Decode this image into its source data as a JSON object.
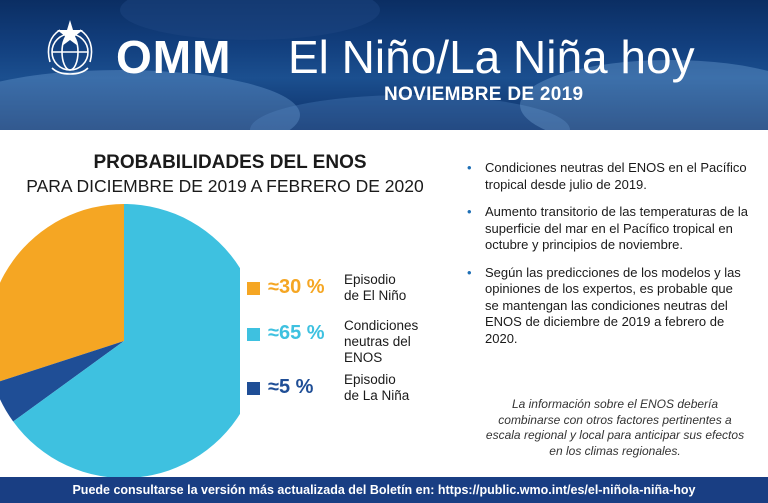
{
  "header": {
    "org": "OMM",
    "title": "El Niño/La Niña hoy",
    "subtitle": "NOVIEMBRE DE 2019"
  },
  "colors": {
    "el_nino": "#f5a623",
    "neutral": "#3ec1e0",
    "la_nina": "#1f4e96",
    "banner": "#123f7e",
    "footer": "#193e83"
  },
  "chart_data": {
    "type": "pie",
    "title": "PROBABILIDADES DEL ENOS",
    "subtitle": "PARA DICIEMBRE DE 2019 A FEBRERO DE 2020",
    "slices": [
      {
        "label": "Episodio de El Niño",
        "value": 30,
        "display": "≈30 %",
        "color": "#f5a623"
      },
      {
        "label": "Condiciones neutras del ENOS",
        "value": 65,
        "display": "≈65 %",
        "color": "#3ec1e0"
      },
      {
        "label": "Episodio de La Niña",
        "value": 5,
        "display": "≈5 %",
        "color": "#1f4e96"
      }
    ],
    "legend_lines": [
      [
        "Episodio",
        "de El Niño"
      ],
      [
        "Condiciones",
        "neutras del",
        "ENOS"
      ],
      [
        "Episodio",
        "de La Niña"
      ]
    ]
  },
  "bullets": [
    "Condiciones neutras del ENOS en el Pacífico tropical desde julio de 2019.",
    "Aumento transitorio de las temperaturas de la superficie del mar en el Pacífico tropical en octubre y principios de noviembre.",
    "Según las predicciones de los modelos y las opiniones de los expertos, es probable que se mantengan las condiciones neutras del ENOS de diciembre de 2019 a febrero de 2020."
  ],
  "bullet_symbol": "•",
  "note": "La información sobre el ENOS debería combinarse con otros factores pertinentes a escala regional y local para anticipar sus efectos en los climas regionales.",
  "footer": {
    "text": "Puede consultarse la versión más actualizada del Boletín en: https://public.wmo.int/es/el-niñola-niña-hoy"
  },
  "icons": {
    "logo": "wmo-emblem-icon"
  }
}
